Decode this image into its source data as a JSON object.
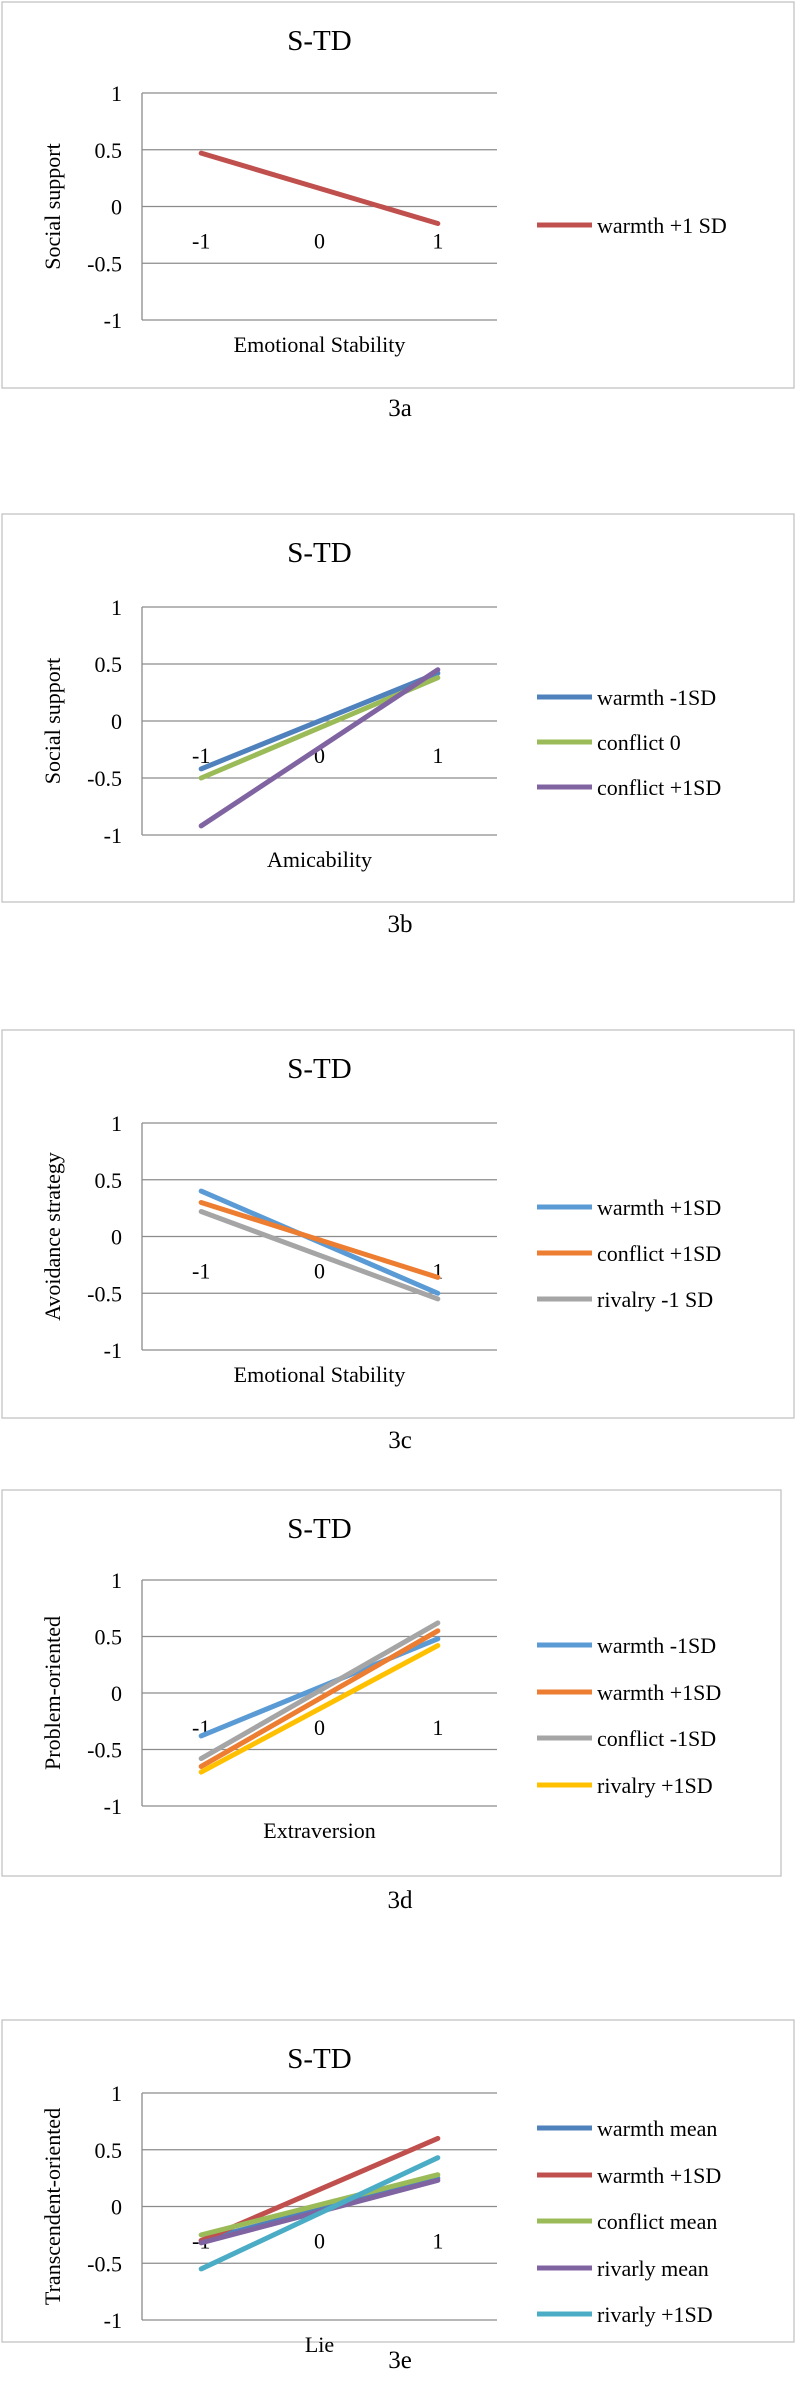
{
  "chart_data": [
    {
      "type": "line",
      "title": "S-TD",
      "xlabel": "Emotional Stability",
      "ylabel": "Social support",
      "caption": "3a",
      "x_ticks": [
        "-1",
        "0",
        "1"
      ],
      "y_ticks": [
        "1",
        "0.5",
        "0",
        "-0.5",
        "-1"
      ],
      "ylim": [
        -1,
        1
      ],
      "legend_position": "right",
      "series": [
        {
          "name": "warmth +1 SD",
          "color": "#c0504d",
          "x": [
            -1,
            1
          ],
          "values": [
            0.47,
            -0.15
          ]
        }
      ]
    },
    {
      "type": "line",
      "title": "S-TD",
      "xlabel": "Amicability",
      "ylabel": "Social support",
      "caption": "3b",
      "x_ticks": [
        "-1",
        "0",
        "1"
      ],
      "y_ticks": [
        "1",
        "0.5",
        "0",
        "-0.5",
        "-1"
      ],
      "ylim": [
        -1,
        1
      ],
      "legend_position": "right",
      "series": [
        {
          "name": "warmth -1SD",
          "color": "#4f81bd",
          "x": [
            -1,
            1
          ],
          "values": [
            -0.42,
            0.42
          ]
        },
        {
          "name": "conflict 0",
          "color": "#9bbb59",
          "x": [
            -1,
            1
          ],
          "values": [
            -0.5,
            0.38
          ]
        },
        {
          "name": "conflict +1SD",
          "color": "#8064a2",
          "x": [
            -1,
            1
          ],
          "values": [
            -0.92,
            0.45
          ]
        }
      ]
    },
    {
      "type": "line",
      "title": "S-TD",
      "xlabel": "Emotional Stability",
      "ylabel": "Avoidance strategy",
      "caption": "3c",
      "x_ticks": [
        "-1",
        "0",
        "1"
      ],
      "y_ticks": [
        "1",
        "0.5",
        "0",
        "-0.5",
        "-1"
      ],
      "ylim": [
        -1,
        1
      ],
      "legend_position": "right",
      "series": [
        {
          "name": "warmth +1SD",
          "color": "#5b9bd5",
          "x": [
            -1,
            1
          ],
          "values": [
            0.4,
            -0.5
          ]
        },
        {
          "name": "conflict +1SD",
          "color": "#ed7d31",
          "x": [
            -1,
            1
          ],
          "values": [
            0.3,
            -0.36
          ]
        },
        {
          "name": "rivalry -1 SD",
          "color": "#a5a5a5",
          "x": [
            -1,
            1
          ],
          "values": [
            0.22,
            -0.55
          ]
        }
      ]
    },
    {
      "type": "line",
      "title": "S-TD",
      "xlabel": "Extraversion",
      "ylabel": "Problem-oriented",
      "caption": "3d",
      "x_ticks": [
        "-1",
        "0",
        "1"
      ],
      "y_ticks": [
        "1",
        "0.5",
        "0",
        "-0.5",
        "-1"
      ],
      "ylim": [
        -1,
        1
      ],
      "legend_position": "right",
      "series": [
        {
          "name": "warmth -1SD",
          "color": "#5b9bd5",
          "x": [
            -1,
            1
          ],
          "values": [
            -0.38,
            0.48
          ]
        },
        {
          "name": "warmth +1SD",
          "color": "#ed7d31",
          "x": [
            -1,
            1
          ],
          "values": [
            -0.65,
            0.55
          ]
        },
        {
          "name": "conflict -1SD",
          "color": "#a5a5a5",
          "x": [
            -1,
            1
          ],
          "values": [
            -0.58,
            0.62
          ]
        },
        {
          "name": "rivalry +1SD",
          "color": "#ffc000",
          "x": [
            -1,
            1
          ],
          "values": [
            -0.7,
            0.42
          ]
        }
      ]
    },
    {
      "type": "line",
      "title": "S-TD",
      "xlabel": "Lie",
      "ylabel": "Transcendent-oriented",
      "caption": "3e",
      "x_ticks": [
        "-1",
        "0",
        "1"
      ],
      "y_ticks": [
        "1",
        "0.5",
        "0",
        "-0.5",
        "-1"
      ],
      "ylim": [
        -1,
        1
      ],
      "legend_position": "right",
      "series": [
        {
          "name": "warmth mean",
          "color": "#4f81bd",
          "x": [
            -1,
            1
          ],
          "values": [
            -0.3,
            0.25
          ]
        },
        {
          "name": "warmth +1SD",
          "color": "#c0504d",
          "x": [
            -1,
            1
          ],
          "values": [
            -0.3,
            0.6
          ]
        },
        {
          "name": "conflict mean",
          "color": "#9bbb59",
          "x": [
            -1,
            1
          ],
          "values": [
            -0.25,
            0.28
          ]
        },
        {
          "name": "rivarly mean",
          "color": "#8064a2",
          "x": [
            -1,
            1
          ],
          "values": [
            -0.32,
            0.23
          ]
        },
        {
          "name": "rivarly +1SD",
          "color": "#4bacc6",
          "x": [
            -1,
            1
          ],
          "values": [
            -0.55,
            0.43
          ]
        }
      ]
    }
  ]
}
